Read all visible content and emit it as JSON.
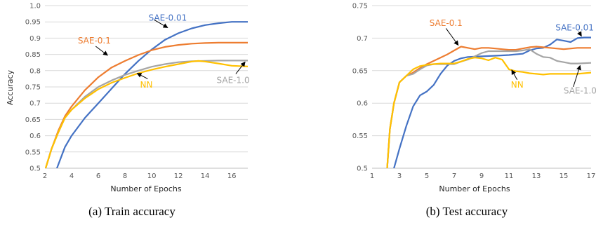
{
  "chart_data": [
    {
      "type": "line",
      "title": "",
      "caption": "(a) Train accuracy",
      "xlabel": "Number of Epochs",
      "ylabel": "Accuracy",
      "xlim": [
        2,
        17.2
      ],
      "ylim": [
        0.5,
        1.0
      ],
      "xticks": [
        2,
        4,
        6,
        8,
        10,
        12,
        14,
        16
      ],
      "yticks": [
        0.5,
        0.55,
        0.6,
        0.65,
        0.7,
        0.75,
        0.8,
        0.85,
        0.9,
        0.95,
        1.0
      ],
      "ytick_labels": [
        "0.5",
        "0.55",
        "0.6",
        "0.65",
        "0.7",
        "0.75",
        "0.8",
        "0.85",
        "0.9",
        "0.95",
        "1.0"
      ],
      "grid": true,
      "series": [
        {
          "name": "SAE-0.01",
          "color": "#4472C4",
          "x": [
            2.9,
            3.5,
            4,
            5,
            6,
            7,
            8,
            9,
            10,
            11,
            12,
            13,
            14,
            15,
            16,
            17,
            17.2
          ],
          "y": [
            0.5,
            0.565,
            0.6,
            0.655,
            0.7,
            0.745,
            0.79,
            0.83,
            0.865,
            0.895,
            0.915,
            0.93,
            0.94,
            0.946,
            0.95,
            0.95,
            0.95
          ]
        },
        {
          "name": "SAE-0.1",
          "color": "#ED7D31",
          "x": [
            2.05,
            2.5,
            3,
            3.5,
            4,
            5,
            6,
            7,
            8,
            9,
            10,
            11,
            12,
            13,
            14,
            15,
            16,
            17.2
          ],
          "y": [
            0.5,
            0.56,
            0.615,
            0.66,
            0.69,
            0.74,
            0.78,
            0.81,
            0.83,
            0.848,
            0.863,
            0.873,
            0.879,
            0.883,
            0.885,
            0.886,
            0.886,
            0.886
          ]
        },
        {
          "name": "SAE-1.0",
          "color": "#A5A5A5",
          "x": [
            2.05,
            2.5,
            3,
            3.5,
            4,
            5,
            6,
            7,
            8,
            9,
            10,
            11,
            12,
            13,
            14,
            15,
            16,
            17.2
          ],
          "y": [
            0.5,
            0.56,
            0.61,
            0.655,
            0.68,
            0.72,
            0.75,
            0.77,
            0.787,
            0.8,
            0.812,
            0.82,
            0.826,
            0.829,
            0.83,
            0.831,
            0.831,
            0.831
          ]
        },
        {
          "name": "NN",
          "color": "#FFC000",
          "x": [
            2.05,
            2.5,
            3,
            3.5,
            4,
            5,
            6,
            7,
            8,
            9,
            10,
            11,
            12,
            13,
            13.5,
            14,
            15,
            16,
            17.2
          ],
          "y": [
            0.5,
            0.56,
            0.61,
            0.655,
            0.68,
            0.715,
            0.743,
            0.763,
            0.778,
            0.792,
            0.803,
            0.812,
            0.82,
            0.828,
            0.83,
            0.828,
            0.822,
            0.815,
            0.813
          ]
        }
      ],
      "annotations": [
        {
          "text": "SAE-0.01",
          "color": "#4472C4",
          "label_at": [
            11.2,
            0.962
          ],
          "arrow_from": [
            10.2,
            0.956
          ],
          "arrow_to": [
            11.2,
            0.932
          ]
        },
        {
          "text": "SAE-0.1",
          "color": "#ED7D31",
          "label_at": [
            5.7,
            0.892
          ],
          "arrow_from": [
            5.8,
            0.875
          ],
          "arrow_to": [
            6.7,
            0.847
          ]
        },
        {
          "text": "NN",
          "color": "#FFC000",
          "label_at": [
            9.6,
            0.757
          ],
          "arrow_from": [
            9.7,
            0.775
          ],
          "arrow_to": [
            8.9,
            0.792
          ]
        },
        {
          "text": "SAE-1.0",
          "color": "#A5A5A5",
          "label_at": [
            16.1,
            0.77
          ],
          "arrow_from": [
            16.3,
            0.79
          ],
          "arrow_to": [
            17.0,
            0.827
          ]
        }
      ]
    },
    {
      "type": "line",
      "title": "",
      "caption": "(b) Test accuracy",
      "xlabel": "Number of Epochs",
      "ylabel": "",
      "xlim": [
        1,
        17
      ],
      "ylim": [
        0.5,
        0.75
      ],
      "xticks": [
        1,
        3,
        5,
        7,
        9,
        11,
        13,
        15,
        17
      ],
      "yticks": [
        0.5,
        0.55,
        0.6,
        0.65,
        0.7,
        0.75
      ],
      "ytick_labels": [
        "0.5",
        "0.55",
        "0.6",
        "0.65",
        "0.7",
        "0.75"
      ],
      "grid": true,
      "series": [
        {
          "name": "SAE-0.01",
          "color": "#4472C4",
          "x": [
            2.6,
            3,
            3.5,
            4,
            4.5,
            5,
            5.5,
            6,
            6.5,
            7,
            7.5,
            8,
            9,
            10,
            11,
            12,
            12.5,
            13,
            13.5,
            14,
            14.5,
            15,
            15.5,
            16,
            16.5,
            17
          ],
          "y": [
            0.5,
            0.53,
            0.565,
            0.595,
            0.612,
            0.618,
            0.628,
            0.645,
            0.658,
            0.665,
            0.669,
            0.671,
            0.672,
            0.673,
            0.674,
            0.676,
            0.681,
            0.684,
            0.685,
            0.69,
            0.698,
            0.696,
            0.694,
            0.7,
            0.701,
            0.701
          ]
        },
        {
          "name": "SAE-0.1",
          "color": "#ED7D31",
          "x": [
            2.1,
            2.3,
            2.6,
            3,
            3.5,
            4,
            4.5,
            5,
            5.5,
            6,
            6.5,
            7,
            7.5,
            8,
            8.5,
            9,
            9.5,
            10,
            10.5,
            11,
            11.5,
            12,
            12.5,
            13,
            13.5,
            14,
            15,
            16,
            17
          ],
          "y": [
            0.5,
            0.56,
            0.6,
            0.632,
            0.642,
            0.647,
            0.654,
            0.66,
            0.665,
            0.67,
            0.675,
            0.681,
            0.687,
            0.685,
            0.683,
            0.685,
            0.685,
            0.684,
            0.683,
            0.682,
            0.682,
            0.684,
            0.686,
            0.687,
            0.686,
            0.685,
            0.683,
            0.685,
            0.685
          ]
        },
        {
          "name": "SAE-1.0",
          "color": "#A5A5A5",
          "x": [
            2.1,
            2.3,
            2.6,
            3,
            3.5,
            4,
            4.5,
            5,
            5.5,
            6,
            6.5,
            7,
            7.5,
            8,
            8.5,
            9,
            9.5,
            10,
            10.5,
            11,
            11.5,
            12,
            12.5,
            13,
            13.5,
            14,
            14.5,
            15,
            15.5,
            16,
            17
          ],
          "y": [
            0.5,
            0.56,
            0.6,
            0.632,
            0.642,
            0.645,
            0.652,
            0.658,
            0.66,
            0.66,
            0.66,
            0.66,
            0.664,
            0.667,
            0.672,
            0.677,
            0.68,
            0.68,
            0.68,
            0.68,
            0.68,
            0.681,
            0.683,
            0.676,
            0.671,
            0.67,
            0.665,
            0.663,
            0.661,
            0.661,
            0.662
          ]
        },
        {
          "name": "NN",
          "color": "#FFC000",
          "x": [
            2.1,
            2.3,
            2.6,
            3,
            3.5,
            4,
            4.5,
            5,
            5.5,
            6,
            6.5,
            7,
            7.5,
            8,
            8.5,
            9,
            9.5,
            10,
            10.5,
            11,
            11.5,
            12,
            12.5,
            13,
            13.5,
            14,
            15,
            16,
            17
          ],
          "y": [
            0.5,
            0.56,
            0.6,
            0.632,
            0.642,
            0.652,
            0.657,
            0.659,
            0.66,
            0.661,
            0.661,
            0.661,
            0.664,
            0.668,
            0.67,
            0.669,
            0.666,
            0.67,
            0.667,
            0.652,
            0.649,
            0.648,
            0.646,
            0.645,
            0.644,
            0.645,
            0.645,
            0.645,
            0.647
          ]
        }
      ],
      "annotations": [
        {
          "text": "SAE-0.01",
          "color": "#4472C4",
          "label_at": [
            15.8,
            0.716
          ],
          "arrow_from": [
            16.1,
            0.71
          ],
          "arrow_to": [
            16.3,
            0.703
          ]
        },
        {
          "text": "SAE-0.1",
          "color": "#ED7D31",
          "label_at": [
            6.4,
            0.723
          ],
          "arrow_from": [
            6.4,
            0.715
          ],
          "arrow_to": [
            7.3,
            0.689
          ]
        },
        {
          "text": "NN",
          "color": "#FFC000",
          "label_at": [
            11.6,
            0.628
          ],
          "arrow_from": [
            11.6,
            0.636
          ],
          "arrow_to": [
            11.2,
            0.651
          ]
        },
        {
          "text": "SAE-1.0",
          "color": "#A5A5A5",
          "label_at": [
            16.2,
            0.619
          ],
          "arrow_from": [
            15.7,
            0.625
          ],
          "arrow_to": [
            16.2,
            0.658
          ]
        }
      ]
    }
  ]
}
